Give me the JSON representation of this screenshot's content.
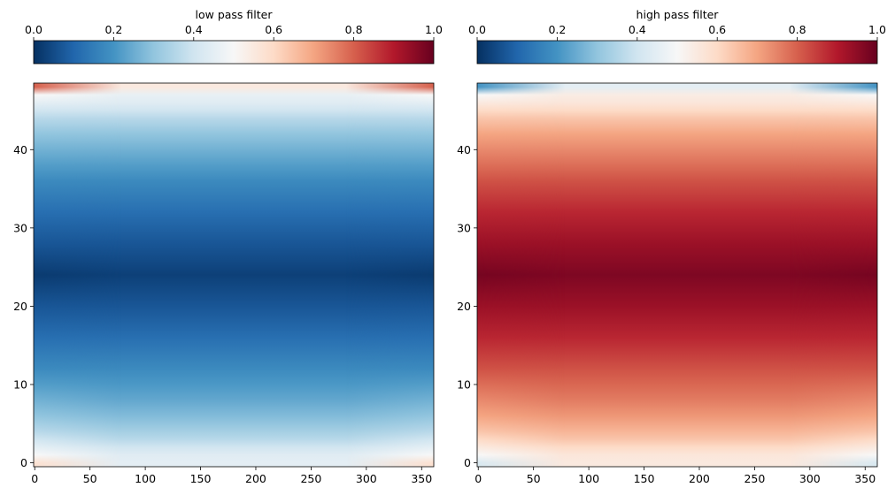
{
  "chart_data": [
    {
      "type": "heatmap",
      "title": "low pass filter",
      "colormap": "RdBu_r",
      "colorbar": {
        "label": "low pass filter",
        "location": "top",
        "range": [
          0.0,
          1.0
        ],
        "ticks": [
          0.0,
          0.2,
          0.4,
          0.6,
          0.8,
          1.0
        ],
        "tick_labels": [
          "0.0",
          "0.2",
          "0.4",
          "0.6",
          "0.8",
          "1.0"
        ]
      },
      "xlim": [
        -1,
        361
      ],
      "ylim": [
        -0.5,
        48.5
      ],
      "xticks": [
        0,
        50,
        100,
        150,
        200,
        250,
        300,
        350
      ],
      "xtick_labels": [
        "0",
        "50",
        "100",
        "150",
        "200",
        "250",
        "300",
        "350"
      ],
      "yticks": [
        0,
        10,
        20,
        30,
        40
      ],
      "ytick_labels": [
        "0",
        "10",
        "20",
        "30",
        "40"
      ],
      "grid": false,
      "field": {
        "description": "value varies mainly with row (y); symmetric about y=24",
        "y": [
          0,
          1,
          2,
          3,
          4,
          6,
          8,
          10,
          12,
          16,
          20,
          24,
          28,
          32,
          36,
          38,
          40,
          42,
          44,
          45,
          46,
          47,
          48
        ],
        "value_at_x_edges": [
          0.58,
          0.5,
          0.45,
          0.4,
          0.36,
          0.3,
          0.26,
          0.22,
          0.18,
          0.12,
          0.07,
          0.02,
          0.07,
          0.12,
          0.18,
          0.22,
          0.26,
          0.3,
          0.36,
          0.4,
          0.45,
          0.5,
          0.8
        ],
        "value_at_x_center": [
          0.45,
          0.44,
          0.4,
          0.36,
          0.33,
          0.28,
          0.24,
          0.21,
          0.18,
          0.12,
          0.07,
          0.03,
          0.07,
          0.12,
          0.18,
          0.22,
          0.26,
          0.3,
          0.36,
          0.4,
          0.44,
          0.46,
          0.55
        ]
      }
    },
    {
      "type": "heatmap",
      "title": "high pass filter",
      "colormap": "RdBu_r",
      "colorbar": {
        "label": "high pass filter",
        "location": "top",
        "range": [
          0.0,
          1.0
        ],
        "ticks": [
          0.0,
          0.2,
          0.4,
          0.6,
          0.8,
          1.0
        ],
        "tick_labels": [
          "0.0",
          "0.2",
          "0.4",
          "0.6",
          "0.8",
          "1.0"
        ]
      },
      "xlim": [
        -1,
        361
      ],
      "ylim": [
        -0.5,
        48.5
      ],
      "xticks": [
        0,
        50,
        100,
        150,
        200,
        250,
        300,
        350
      ],
      "xtick_labels": [
        "0",
        "50",
        "100",
        "150",
        "200",
        "250",
        "300",
        "350"
      ],
      "yticks": [
        0,
        10,
        20,
        30,
        40
      ],
      "ytick_labels": [
        "0",
        "10",
        "20",
        "30",
        "40"
      ],
      "grid": false,
      "field": {
        "description": "complement of the low pass filter (1 - low pass)",
        "y": [
          0,
          1,
          2,
          3,
          4,
          6,
          8,
          10,
          12,
          16,
          20,
          24,
          28,
          32,
          36,
          38,
          40,
          42,
          44,
          45,
          46,
          47,
          48
        ],
        "value_at_x_edges": [
          0.42,
          0.5,
          0.55,
          0.6,
          0.64,
          0.7,
          0.74,
          0.78,
          0.82,
          0.88,
          0.93,
          0.98,
          0.93,
          0.88,
          0.82,
          0.78,
          0.74,
          0.7,
          0.64,
          0.6,
          0.55,
          0.5,
          0.2
        ],
        "value_at_x_center": [
          0.55,
          0.56,
          0.6,
          0.64,
          0.67,
          0.72,
          0.76,
          0.79,
          0.82,
          0.88,
          0.93,
          0.97,
          0.93,
          0.88,
          0.82,
          0.78,
          0.74,
          0.7,
          0.64,
          0.6,
          0.56,
          0.54,
          0.45
        ]
      }
    }
  ]
}
